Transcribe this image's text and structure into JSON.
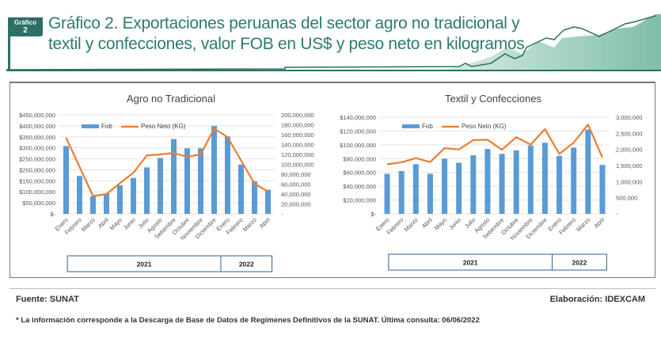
{
  "header": {
    "badge_line1": "Gráfico",
    "badge_line2": "2",
    "title": "Gráfico 2. Exportaciones peruanas del sector agro no tradicional y textil y confecciones, valor FOB en US$ y peso neto en kilogramos"
  },
  "colors": {
    "bar": "#5b9bd5",
    "line": "#ed7d31",
    "title": "#2e7a6e"
  },
  "chart_data": [
    {
      "type": "bar+line",
      "title": "Agro no Tradicional",
      "legend": [
        "Fob",
        "Peso Neto (KG)"
      ],
      "legend_placement": "top-left",
      "categories": [
        "Enero",
        "Febrero",
        "Marzo",
        "Abril",
        "Mayo",
        "Junio",
        "Julio",
        "Agosto",
        "Setiembre",
        "Octubre",
        "Noviembre",
        "Diciembre",
        "Enero",
        "Febrero",
        "Marzo",
        "Abril"
      ],
      "years": [
        {
          "label": "2021",
          "count": 12
        },
        {
          "label": "2022",
          "count": 4
        }
      ],
      "series": [
        {
          "name": "Fob",
          "axis": "left",
          "values": [
            308000000,
            172000000,
            80000000,
            92000000,
            130000000,
            163000000,
            211000000,
            254000000,
            340000000,
            298000000,
            298000000,
            400000000,
            352000000,
            224000000,
            148000000,
            110000000
          ]
        },
        {
          "name": "Peso Neto (KG)",
          "axis": "right",
          "values": [
            154000000,
            95000000,
            36000000,
            40000000,
            62000000,
            83000000,
            118000000,
            120000000,
            123000000,
            115000000,
            120000000,
            172000000,
            155000000,
            108000000,
            61000000,
            45000000
          ]
        }
      ],
      "ylim_left": [
        0,
        450000000
      ],
      "ylim_right": [
        0,
        200000000
      ],
      "yticks_left": [
        "$-",
        "$50,000,000",
        "$100,000,000",
        "$150,000,000",
        "$200,000,000",
        "$250,000,000",
        "$300,000,000",
        "$350,000,000",
        "$400,000,000",
        "$450,000,000"
      ],
      "yticks_right": [
        "-",
        "20,000,000",
        "40,000,000",
        "60,000,000",
        "80,000,000",
        "100,000,000",
        "120,000,000",
        "140,000,000",
        "160,000,000",
        "180,000,000",
        "200,000,000"
      ]
    },
    {
      "type": "bar+line",
      "title": "Textil y Confecciones",
      "legend": [
        "Fob",
        "Peso Neto (KG)"
      ],
      "legend_placement": "top-left",
      "categories": [
        "Enero",
        "Febrero",
        "Marzo",
        "Abril",
        "Mayo",
        "Junio",
        "Julio",
        "Agosto",
        "Setiembre",
        "Octubre",
        "Noviembre",
        "Diciembre",
        "Enero",
        "Febrero",
        "Marzo",
        "Abril"
      ],
      "years": [
        {
          "label": "2021",
          "count": 12
        },
        {
          "label": "2022",
          "count": 4
        }
      ],
      "series": [
        {
          "name": "Fob",
          "axis": "left",
          "values": [
            58000000,
            62000000,
            72000000,
            58000000,
            80000000,
            74000000,
            85000000,
            94000000,
            87000000,
            92000000,
            99000000,
            103000000,
            84000000,
            96000000,
            122000000,
            71000000
          ]
        },
        {
          "name": "Peso Neto (KG)",
          "axis": "right",
          "values": [
            1540000,
            1600000,
            1730000,
            1610000,
            2040000,
            2000000,
            2290000,
            2300000,
            1990000,
            2380000,
            2150000,
            2630000,
            1860000,
            2210000,
            2770000,
            1750000
          ]
        }
      ],
      "ylim_left": [
        0,
        140000000
      ],
      "ylim_right": [
        0,
        3000000
      ],
      "yticks_left": [
        "$-",
        "$20,000,000",
        "$40,000,000",
        "$60,000,000",
        "$80,000,000",
        "$100,000,000",
        "$120,000,000",
        "$140,000,000"
      ],
      "yticks_right": [
        "-",
        "500,000",
        "1,000,000",
        "1,500,000",
        "2,000,000",
        "2,500,000",
        "3,000,000"
      ]
    }
  ],
  "footer": {
    "source": "Fuente: SUNAT",
    "author": "Elaboración: IDEXCAM",
    "note": "* La información corresponde a la Descarga de Base de Datos de Regímenes Definitivos de la SUNAT. Última consulta: 06/06/2022"
  }
}
